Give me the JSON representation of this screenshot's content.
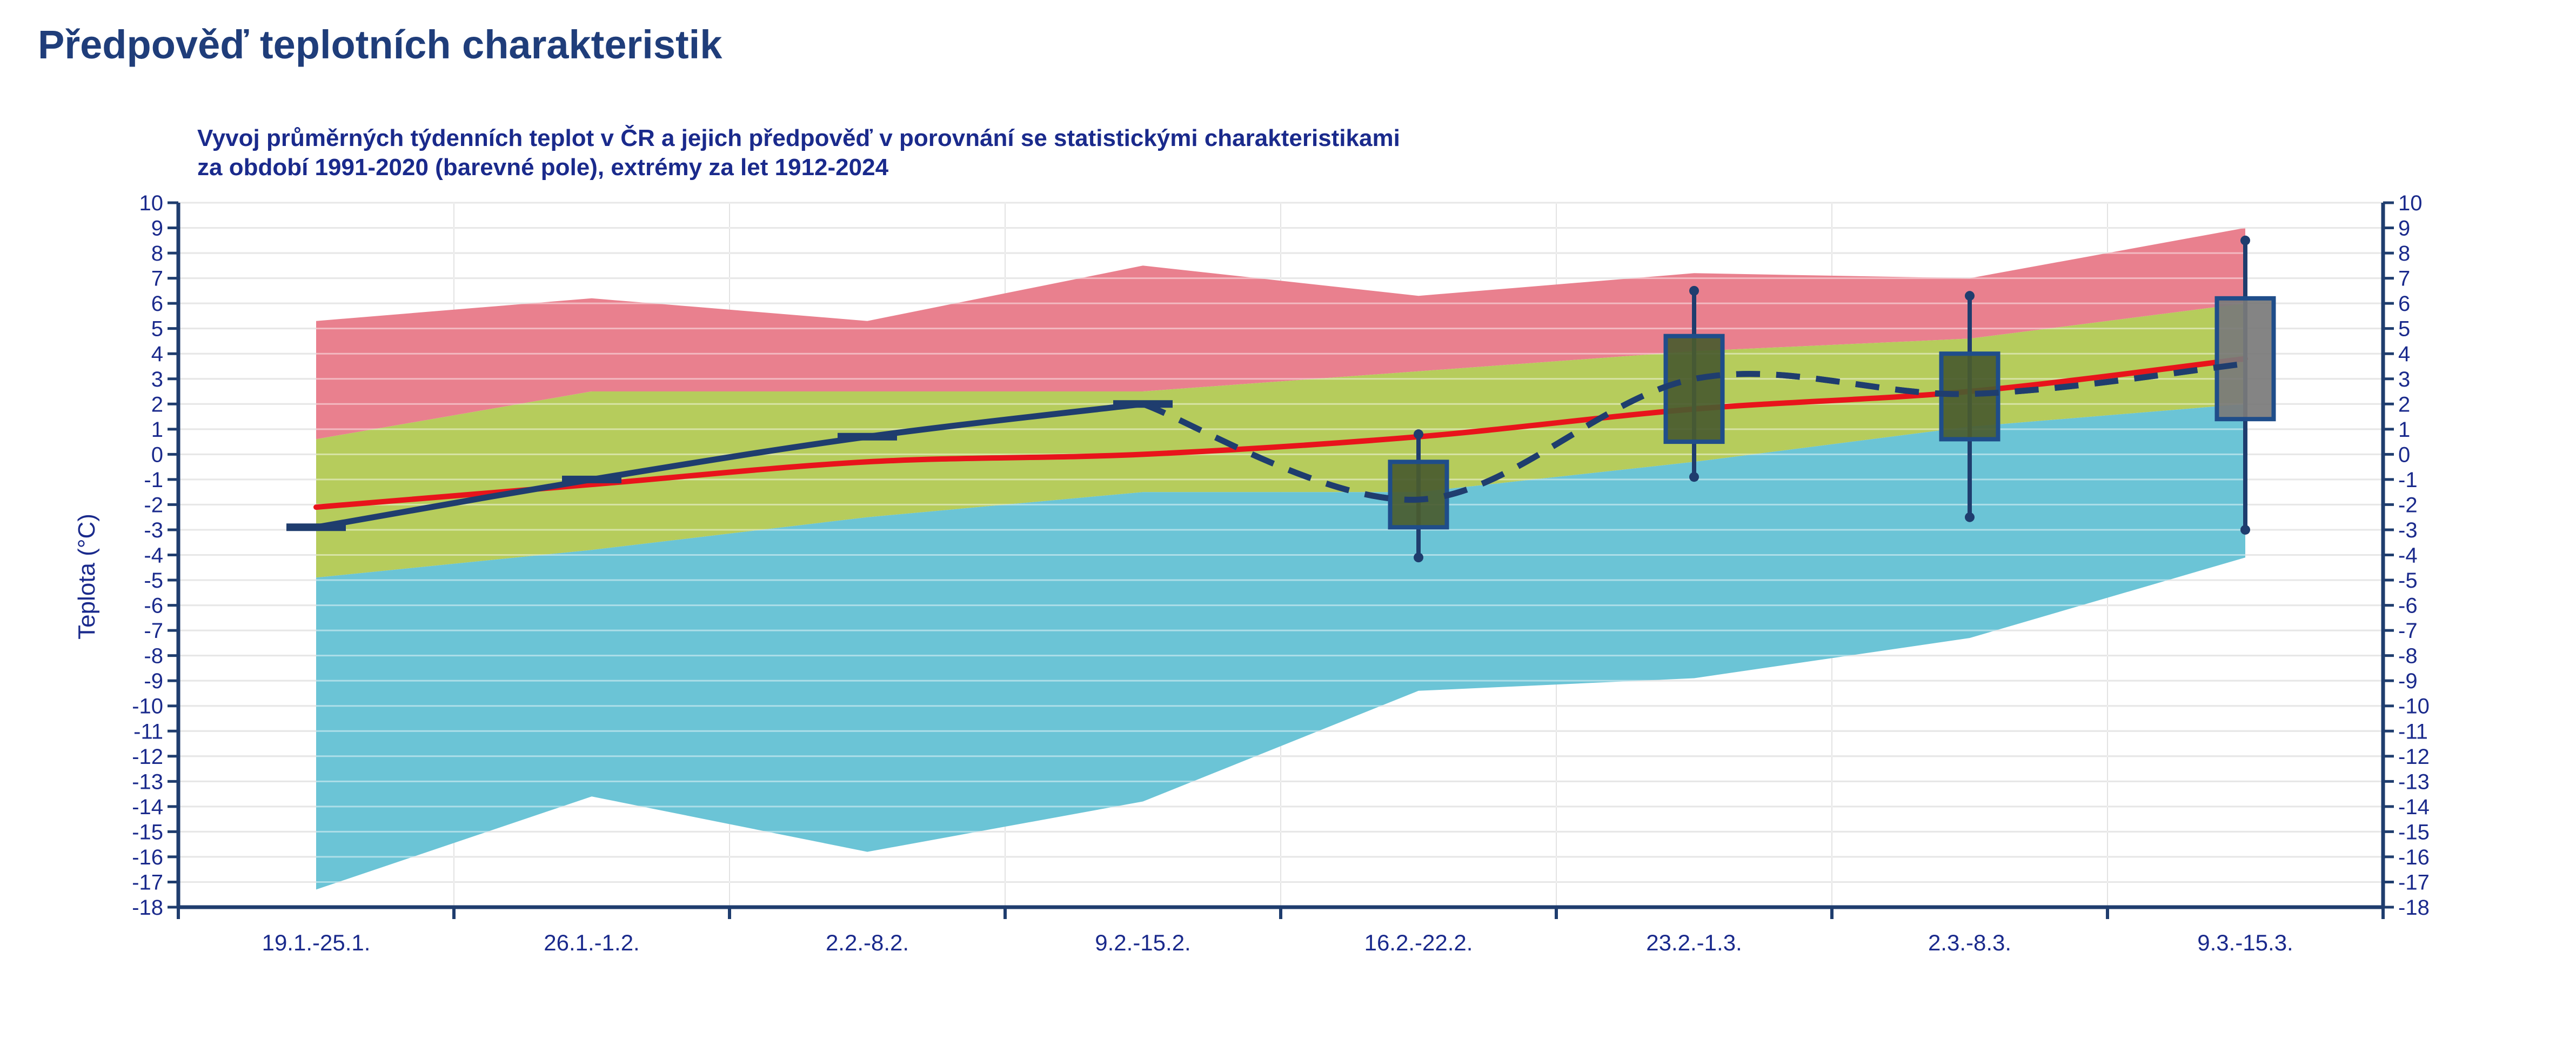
{
  "page": {
    "title": "Předpověď teplotních charakteristik"
  },
  "chart_data": {
    "type": "area",
    "title": "Vyvoj průměrných týdenních teplot v ČR a jejich předpověď v porovnání se statistickými charakteristikami",
    "subtitle": "za období 1991-2020 (barevné pole), extrémy za let 1912-2024",
    "ylabel": "Teplota (°C)",
    "xlabel": "",
    "ylim": [
      -18,
      10
    ],
    "yticks": [
      10,
      9,
      8,
      7,
      6,
      5,
      4,
      3,
      2,
      1,
      0,
      -1,
      -2,
      -3,
      -4,
      -5,
      -6,
      -7,
      -8,
      -9,
      -10,
      -11,
      -12,
      -13,
      -14,
      -15,
      -16,
      -17,
      -18
    ],
    "categories": [
      "19.1.-25.1.",
      "26.1.-1.2.",
      "2.2.-8.2.",
      "9.2.-15.2.",
      "16.2.-22.2.",
      "23.2.-1.3.",
      "2.3.-8.3.",
      "9.3.-15.3."
    ],
    "grid": true,
    "bands": {
      "max": [
        5.3,
        6.2,
        5.3,
        7.5,
        6.3,
        7.2,
        7.0,
        9.0
      ],
      "upper": [
        0.6,
        2.5,
        2.5,
        2.5,
        3.3,
        4.1,
        4.6,
        6.0
      ],
      "lower": [
        -4.9,
        -3.8,
        -2.5,
        -1.5,
        -1.5,
        -0.3,
        1.1,
        2.0
      ],
      "min": [
        -17.3,
        -13.6,
        -15.8,
        -13.8,
        -9.4,
        -8.9,
        -7.3,
        -4.1
      ],
      "colors": {
        "above": "#e9808e",
        "normal": "#b6cc5c",
        "below": "#6bc4d6"
      }
    },
    "series": [
      {
        "name": "",
        "color": "#e8141b",
        "values": [
          -2.1,
          -1.2,
          -0.3,
          0.0,
          0.7,
          1.8,
          2.5,
          3.8
        ]
      },
      {
        "name": "",
        "color": "#1f3d6e",
        "values": [
          -2.9,
          -1.0,
          0.7,
          2.0,
          null,
          null,
          null,
          null
        ]
      },
      {
        "name": "",
        "color": "#1f3d6e",
        "style": "dashed",
        "values": [
          null,
          null,
          null,
          2.0,
          -1.8,
          3.0,
          2.4,
          3.6
        ]
      }
    ],
    "boxes": [
      {
        "category": "16.2.-22.2.",
        "whisker_low": -4.1,
        "box_low": -2.9,
        "box_high": -0.3,
        "whisker_high": 0.8
      },
      {
        "category": "23.2.-1.3.",
        "whisker_low": -0.9,
        "box_low": 0.5,
        "box_high": 4.7,
        "whisker_high": 6.5
      },
      {
        "category": "2.3.-8.3.",
        "whisker_low": -2.5,
        "box_low": 0.6,
        "box_high": 4.0,
        "whisker_high": 6.3
      },
      {
        "category": "9.3.-15.3.",
        "whisker_low": -3.0,
        "box_low": 1.4,
        "box_high": 6.2,
        "whisker_high": 8.5
      }
    ],
    "box_colors": [
      "#4a5b2f",
      "#4a5b2f",
      "#4a5b2f",
      "#7a7a7a"
    ]
  }
}
